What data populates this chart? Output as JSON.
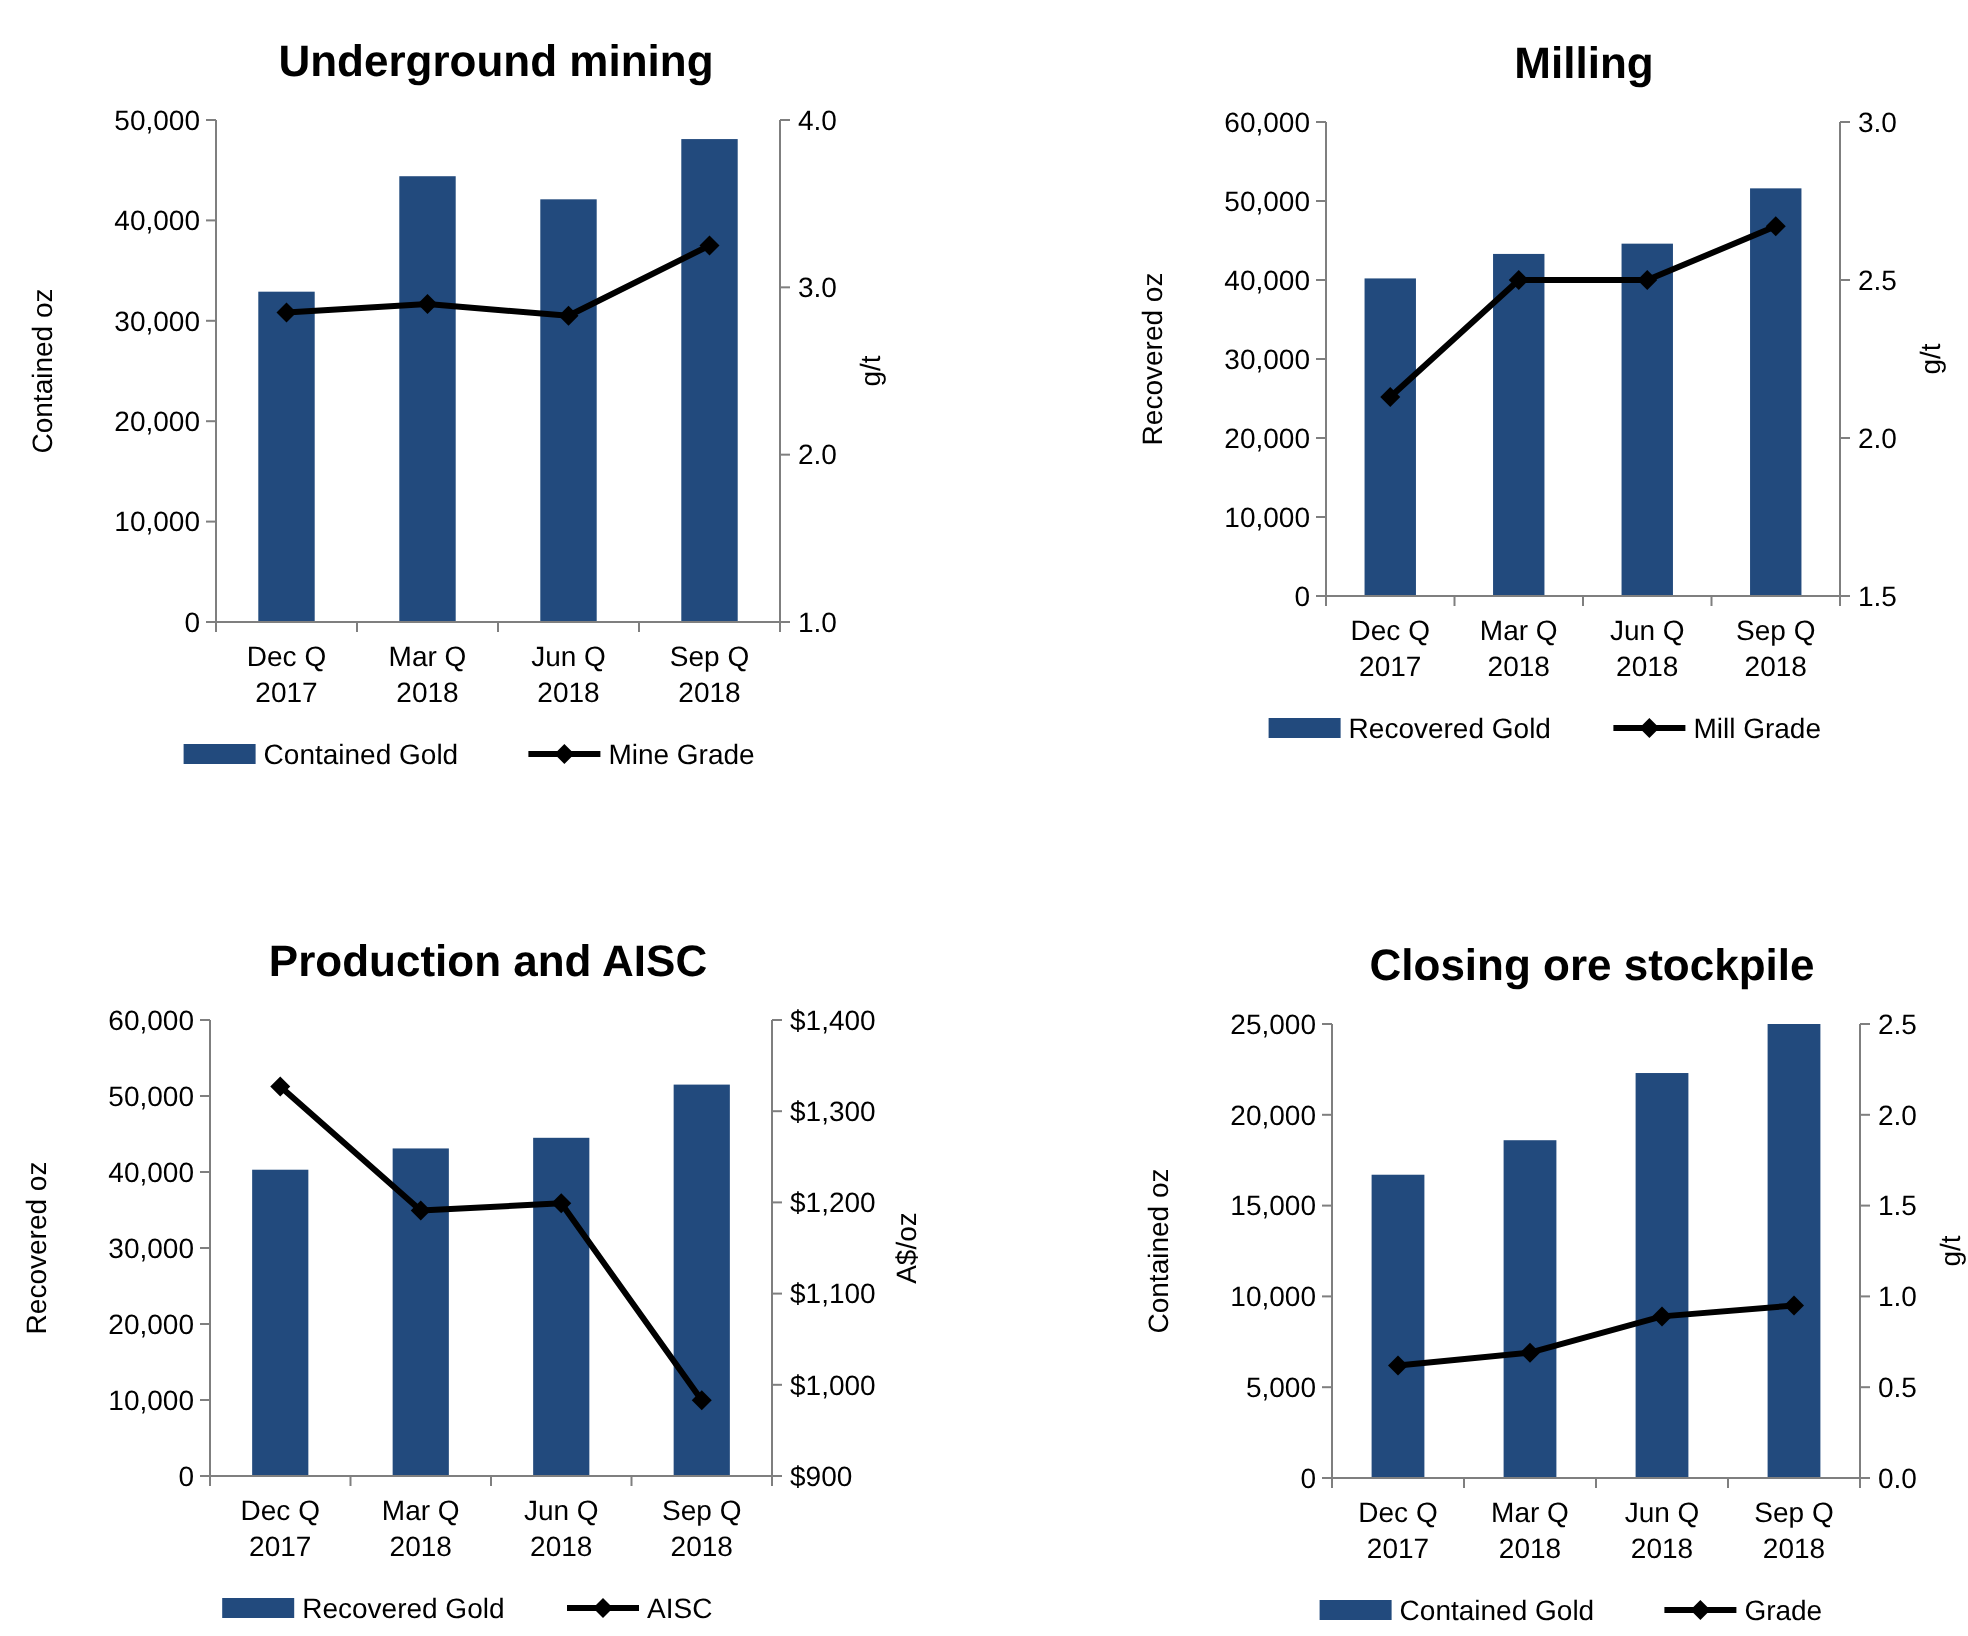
{
  "chart_data": [
    {
      "type": "bar",
      "title": "Underground mining",
      "categories": [
        "Dec Q\n2017",
        "Mar Q\n2018",
        "Jun Q\n2018",
        "Sep Q\n2018"
      ],
      "ylabel": "Contained oz",
      "y2label": "g/t",
      "legend": "bottom",
      "marker": "diamond",
      "ylim": [
        0,
        50000
      ],
      "yticks": [
        {
          "value": 0,
          "label": "0"
        },
        {
          "value": 10000,
          "label": "10,000"
        },
        {
          "value": 20000,
          "label": "20,000"
        },
        {
          "value": 30000,
          "label": "30,000"
        },
        {
          "value": 40000,
          "label": "40,000"
        },
        {
          "value": 50000,
          "label": "50,000"
        }
      ],
      "y2lim": [
        1,
        4
      ],
      "y2ticks": [
        {
          "value": 1,
          "label": "1.0"
        },
        {
          "value": 2,
          "label": "2.0"
        },
        {
          "value": 3,
          "label": "3.0"
        },
        {
          "value": 4,
          "label": "4.0"
        }
      ],
      "series": [
        {
          "name": "Contained Gold",
          "color": "#224a7d",
          "values": [
            32900,
            44400,
            42100,
            48100
          ]
        },
        {
          "name": "Mine Grade",
          "type": "line",
          "axis": "y2",
          "color": "#000000",
          "values": [
            2.85,
            2.9,
            2.83,
            3.25
          ]
        }
      ]
    },
    {
      "type": "bar",
      "title": "Milling",
      "categories": [
        "Dec Q\n2017",
        "Mar Q\n2018",
        "Jun Q\n2018",
        "Sep Q\n2018"
      ],
      "ylabel": "Recovered  oz",
      "y2label": "g/t",
      "legend": "bottom",
      "marker": "diamond",
      "ylim": [
        0,
        60000
      ],
      "yticks": [
        {
          "value": 0,
          "label": "0"
        },
        {
          "value": 10000,
          "label": "10,000"
        },
        {
          "value": 20000,
          "label": "20,000"
        },
        {
          "value": 30000,
          "label": "30,000"
        },
        {
          "value": 40000,
          "label": "40,000"
        },
        {
          "value": 50000,
          "label": "50,000"
        },
        {
          "value": 60000,
          "label": "60,000"
        }
      ],
      "y2lim": [
        1.5,
        3
      ],
      "y2ticks": [
        {
          "value": 1.5,
          "label": "1.5"
        },
        {
          "value": 2,
          "label": "2.0"
        },
        {
          "value": 2.5,
          "label": "2.5"
        },
        {
          "value": 3,
          "label": "3.0"
        }
      ],
      "series": [
        {
          "name": "Recovered Gold",
          "color": "#224a7d",
          "values": [
            40200,
            43300,
            44600,
            51600
          ]
        },
        {
          "name": "Mill Grade",
          "type": "line",
          "axis": "y2",
          "color": "#000000",
          "values": [
            2.13,
            2.5,
            2.5,
            2.67
          ]
        }
      ]
    },
    {
      "type": "bar",
      "title": "Production and AISC",
      "categories": [
        "Dec Q\n2017",
        "Mar Q\n2018",
        "Jun Q\n2018",
        "Sep Q\n2018"
      ],
      "ylabel": "Recovered  oz",
      "y2label": "A$/oz",
      "legend": "bottom",
      "marker": "diamond",
      "ylim": [
        0,
        60000
      ],
      "yticks": [
        {
          "value": 0,
          "label": "0"
        },
        {
          "value": 10000,
          "label": "10,000"
        },
        {
          "value": 20000,
          "label": "20,000"
        },
        {
          "value": 30000,
          "label": "30,000"
        },
        {
          "value": 40000,
          "label": "40,000"
        },
        {
          "value": 50000,
          "label": "50,000"
        },
        {
          "value": 60000,
          "label": "60,000"
        }
      ],
      "y2lim": [
        900,
        1400
      ],
      "y2ticks": [
        {
          "value": 900,
          "label": "$900"
        },
        {
          "value": 1000,
          "label": "$1,000"
        },
        {
          "value": 1100,
          "label": "$1,100"
        },
        {
          "value": 1200,
          "label": "$1,200"
        },
        {
          "value": 1300,
          "label": "$1,300"
        },
        {
          "value": 1400,
          "label": "$1,400"
        }
      ],
      "series": [
        {
          "name": "Recovered Gold",
          "color": "#224a7d",
          "values": [
            40300,
            43100,
            44500,
            51500
          ]
        },
        {
          "name": "AISC",
          "type": "line",
          "axis": "y2",
          "color": "#000000",
          "values": [
            1327,
            1191,
            1199,
            983
          ]
        }
      ]
    },
    {
      "type": "bar",
      "title": "Closing ore stockpile",
      "categories": [
        "Dec Q\n2017",
        "Mar Q\n2018",
        "Jun Q\n2018",
        "Sep Q\n2018"
      ],
      "ylabel": "Contained oz",
      "y2label": "g/t",
      "legend": "bottom",
      "marker": "diamond",
      "ylim": [
        0,
        25000
      ],
      "yticks": [
        {
          "value": 0,
          "label": "0"
        },
        {
          "value": 5000,
          "label": "5,000"
        },
        {
          "value": 10000,
          "label": "10,000"
        },
        {
          "value": 15000,
          "label": "15,000"
        },
        {
          "value": 20000,
          "label": "20,000"
        },
        {
          "value": 25000,
          "label": "25,000"
        }
      ],
      "y2lim": [
        0,
        2.5
      ],
      "y2ticks": [
        {
          "value": 0,
          "label": "0.0"
        },
        {
          "value": 0.5,
          "label": "0.5"
        },
        {
          "value": 1,
          "label": "1.0"
        },
        {
          "value": 1.5,
          "label": "1.5"
        },
        {
          "value": 2,
          "label": "2.0"
        },
        {
          "value": 2.5,
          "label": "2.5"
        }
      ],
      "series": [
        {
          "name": "Contained Gold",
          "color": "#224a7d",
          "values": [
            16700,
            18600,
            22300,
            25000
          ]
        },
        {
          "name": "Grade",
          "type": "line",
          "axis": "y2",
          "color": "#000000",
          "values": [
            0.62,
            0.69,
            0.89,
            0.95
          ]
        }
      ]
    }
  ]
}
